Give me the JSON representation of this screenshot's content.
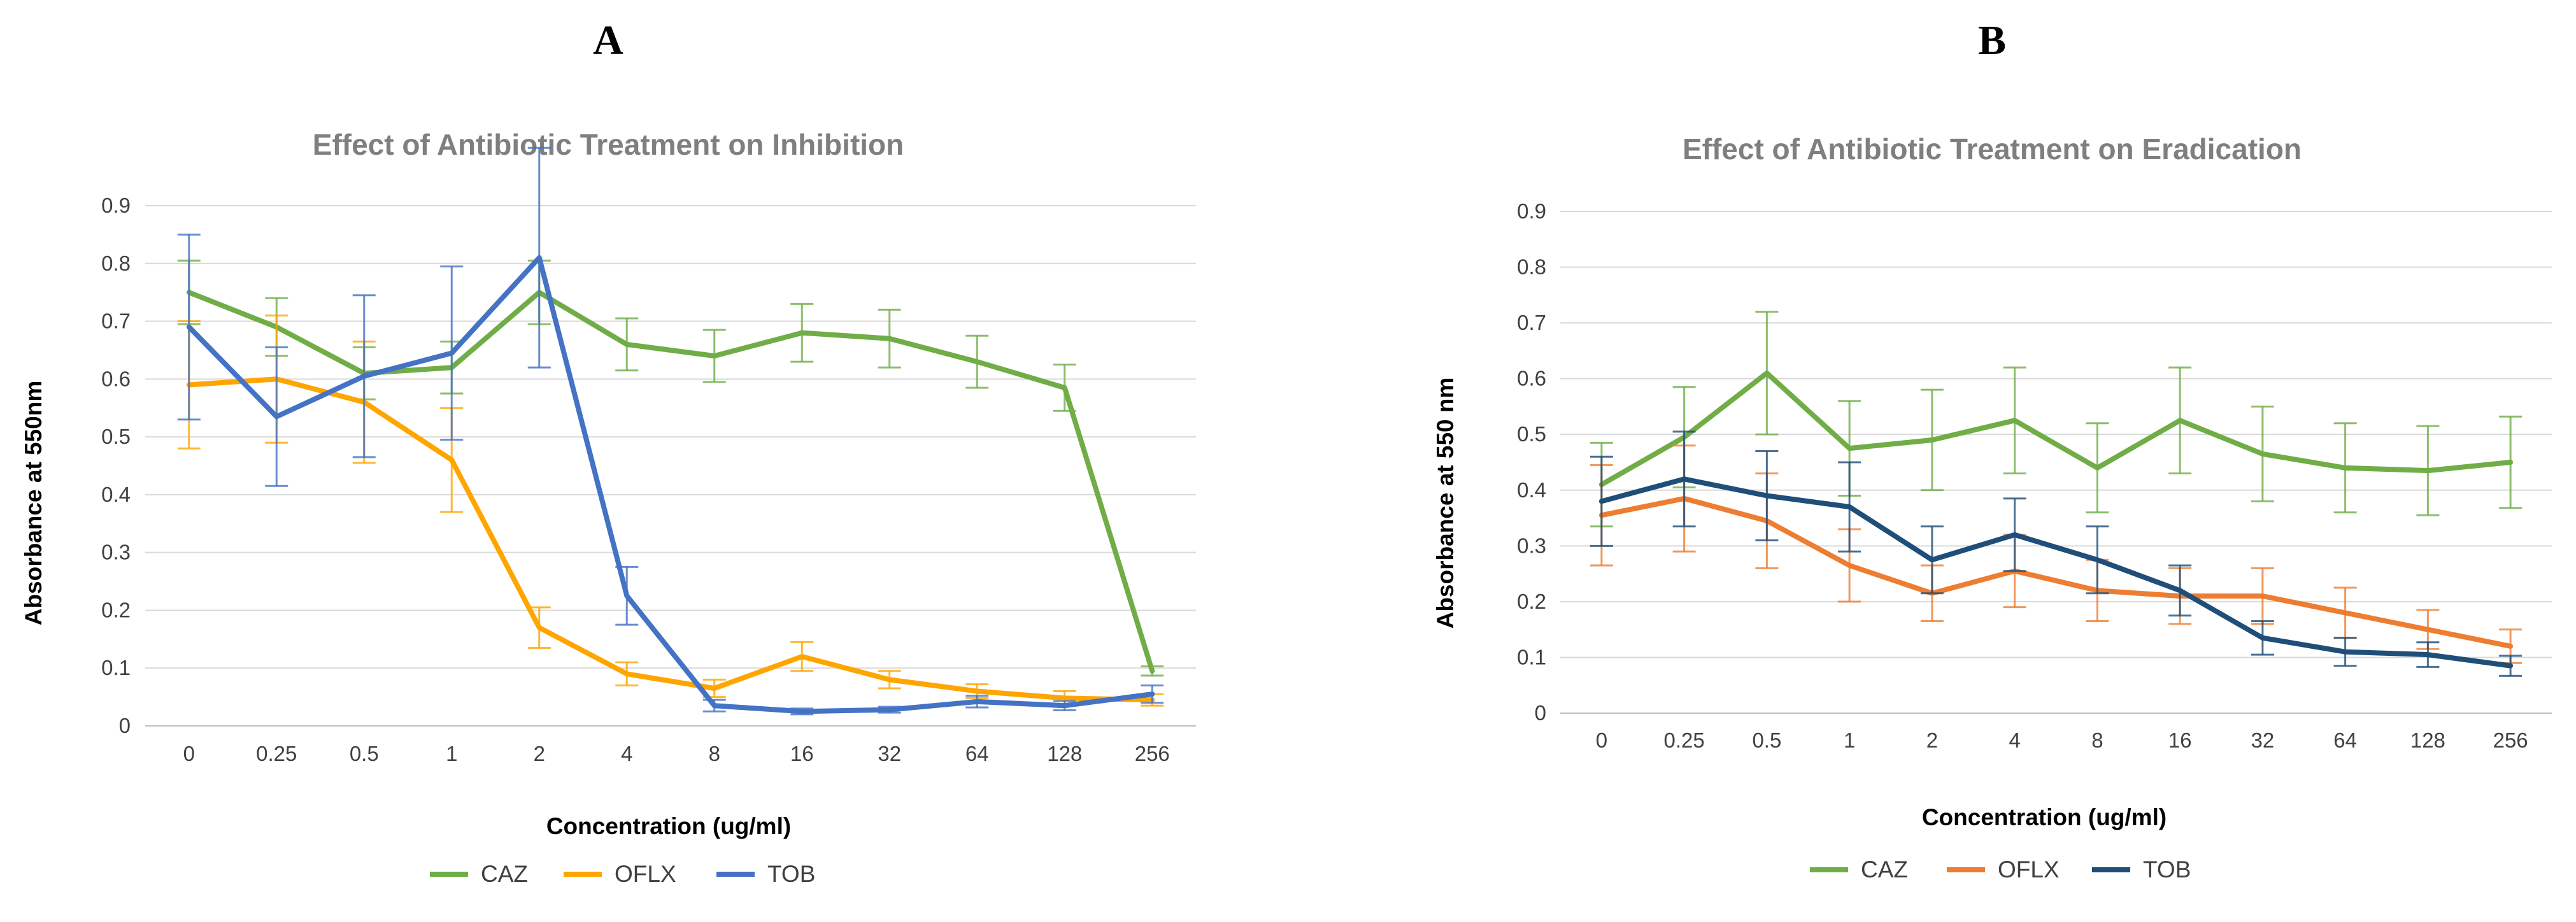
{
  "panels": [
    {
      "letter": "A"
    },
    {
      "letter": "B"
    }
  ],
  "chart_data": [
    {
      "type": "line",
      "title": "Effect of Antibiotic Treatment on Inhibition",
      "xlabel": "Concentration (ug/ml)",
      "ylabel": "Absorbance at 550nm",
      "ylim": [
        0,
        0.9
      ],
      "ytick_labels": [
        "0",
        "0.1",
        "0.2",
        "0.3",
        "0.4",
        "0.5",
        "0.6",
        "0.7",
        "0.8",
        "0.9"
      ],
      "categories": [
        "0",
        "0.25",
        "0.5",
        "1",
        "2",
        "4",
        "8",
        "16",
        "32",
        "64",
        "128",
        "256"
      ],
      "grid": true,
      "legend": "bottom",
      "series": [
        {
          "name": "CAZ",
          "color": "#70ad47",
          "values": [
            0.75,
            0.69,
            0.61,
            0.62,
            0.75,
            0.66,
            0.64,
            0.68,
            0.67,
            0.63,
            0.585,
            0.095
          ],
          "errors": [
            0.055,
            0.05,
            0.045,
            0.045,
            0.055,
            0.045,
            0.045,
            0.05,
            0.05,
            0.045,
            0.04,
            0.008
          ]
        },
        {
          "name": "OFLX",
          "color": "#ffa500",
          "values": [
            0.59,
            0.6,
            0.56,
            0.46,
            0.17,
            0.09,
            0.065,
            0.12,
            0.08,
            0.06,
            0.048,
            0.045
          ],
          "errors": [
            0.11,
            0.11,
            0.105,
            0.09,
            0.035,
            0.02,
            0.015,
            0.025,
            0.015,
            0.012,
            0.012,
            0.01
          ]
        },
        {
          "name": "TOB",
          "color": "#4472c4",
          "values": [
            0.69,
            0.535,
            0.605,
            0.645,
            0.81,
            0.225,
            0.035,
            0.025,
            0.028,
            0.042,
            0.035,
            0.055
          ],
          "errors": [
            0.16,
            0.12,
            0.14,
            0.15,
            0.19,
            0.05,
            0.01,
            0.005,
            0.005,
            0.01,
            0.008,
            0.015
          ]
        }
      ]
    },
    {
      "type": "line",
      "title": "Effect of Antibiotic Treatment on Eradication",
      "xlabel": "Concentration (ug/ml)",
      "ylabel": "Absorbance at 550 nm",
      "ylim": [
        0,
        0.9
      ],
      "ytick_labels": [
        "0",
        "0.1",
        "0.2",
        "0.3",
        "0.4",
        "0.5",
        "0.6",
        "0.7",
        "0.8",
        "0.9"
      ],
      "categories": [
        "0",
        "0.25",
        "0.5",
        "1",
        "2",
        "4",
        "8",
        "16",
        "32",
        "64",
        "128",
        "256"
      ],
      "grid": true,
      "legend": "bottom",
      "series": [
        {
          "name": "CAZ",
          "color": "#70ad47",
          "values": [
            0.41,
            0.495,
            0.61,
            0.475,
            0.49,
            0.525,
            0.44,
            0.525,
            0.465,
            0.44,
            0.435,
            0.45
          ],
          "errors": [
            0.075,
            0.09,
            0.11,
            0.085,
            0.09,
            0.095,
            0.08,
            0.095,
            0.085,
            0.08,
            0.08,
            0.082
          ]
        },
        {
          "name": "OFLX",
          "color": "#ed7d31",
          "values": [
            0.355,
            0.385,
            0.345,
            0.265,
            0.215,
            0.255,
            0.22,
            0.21,
            0.21,
            0.18,
            0.15,
            0.12
          ],
          "errors": [
            0.09,
            0.095,
            0.085,
            0.065,
            0.05,
            0.065,
            0.055,
            0.05,
            0.05,
            0.045,
            0.035,
            0.03
          ]
        },
        {
          "name": "TOB",
          "color": "#1f4e79",
          "values": [
            0.38,
            0.42,
            0.39,
            0.37,
            0.275,
            0.32,
            0.275,
            0.22,
            0.135,
            0.11,
            0.105,
            0.085
          ],
          "errors": [
            0.08,
            0.085,
            0.08,
            0.08,
            0.06,
            0.065,
            0.06,
            0.045,
            0.03,
            0.025,
            0.022,
            0.018
          ]
        }
      ]
    }
  ]
}
